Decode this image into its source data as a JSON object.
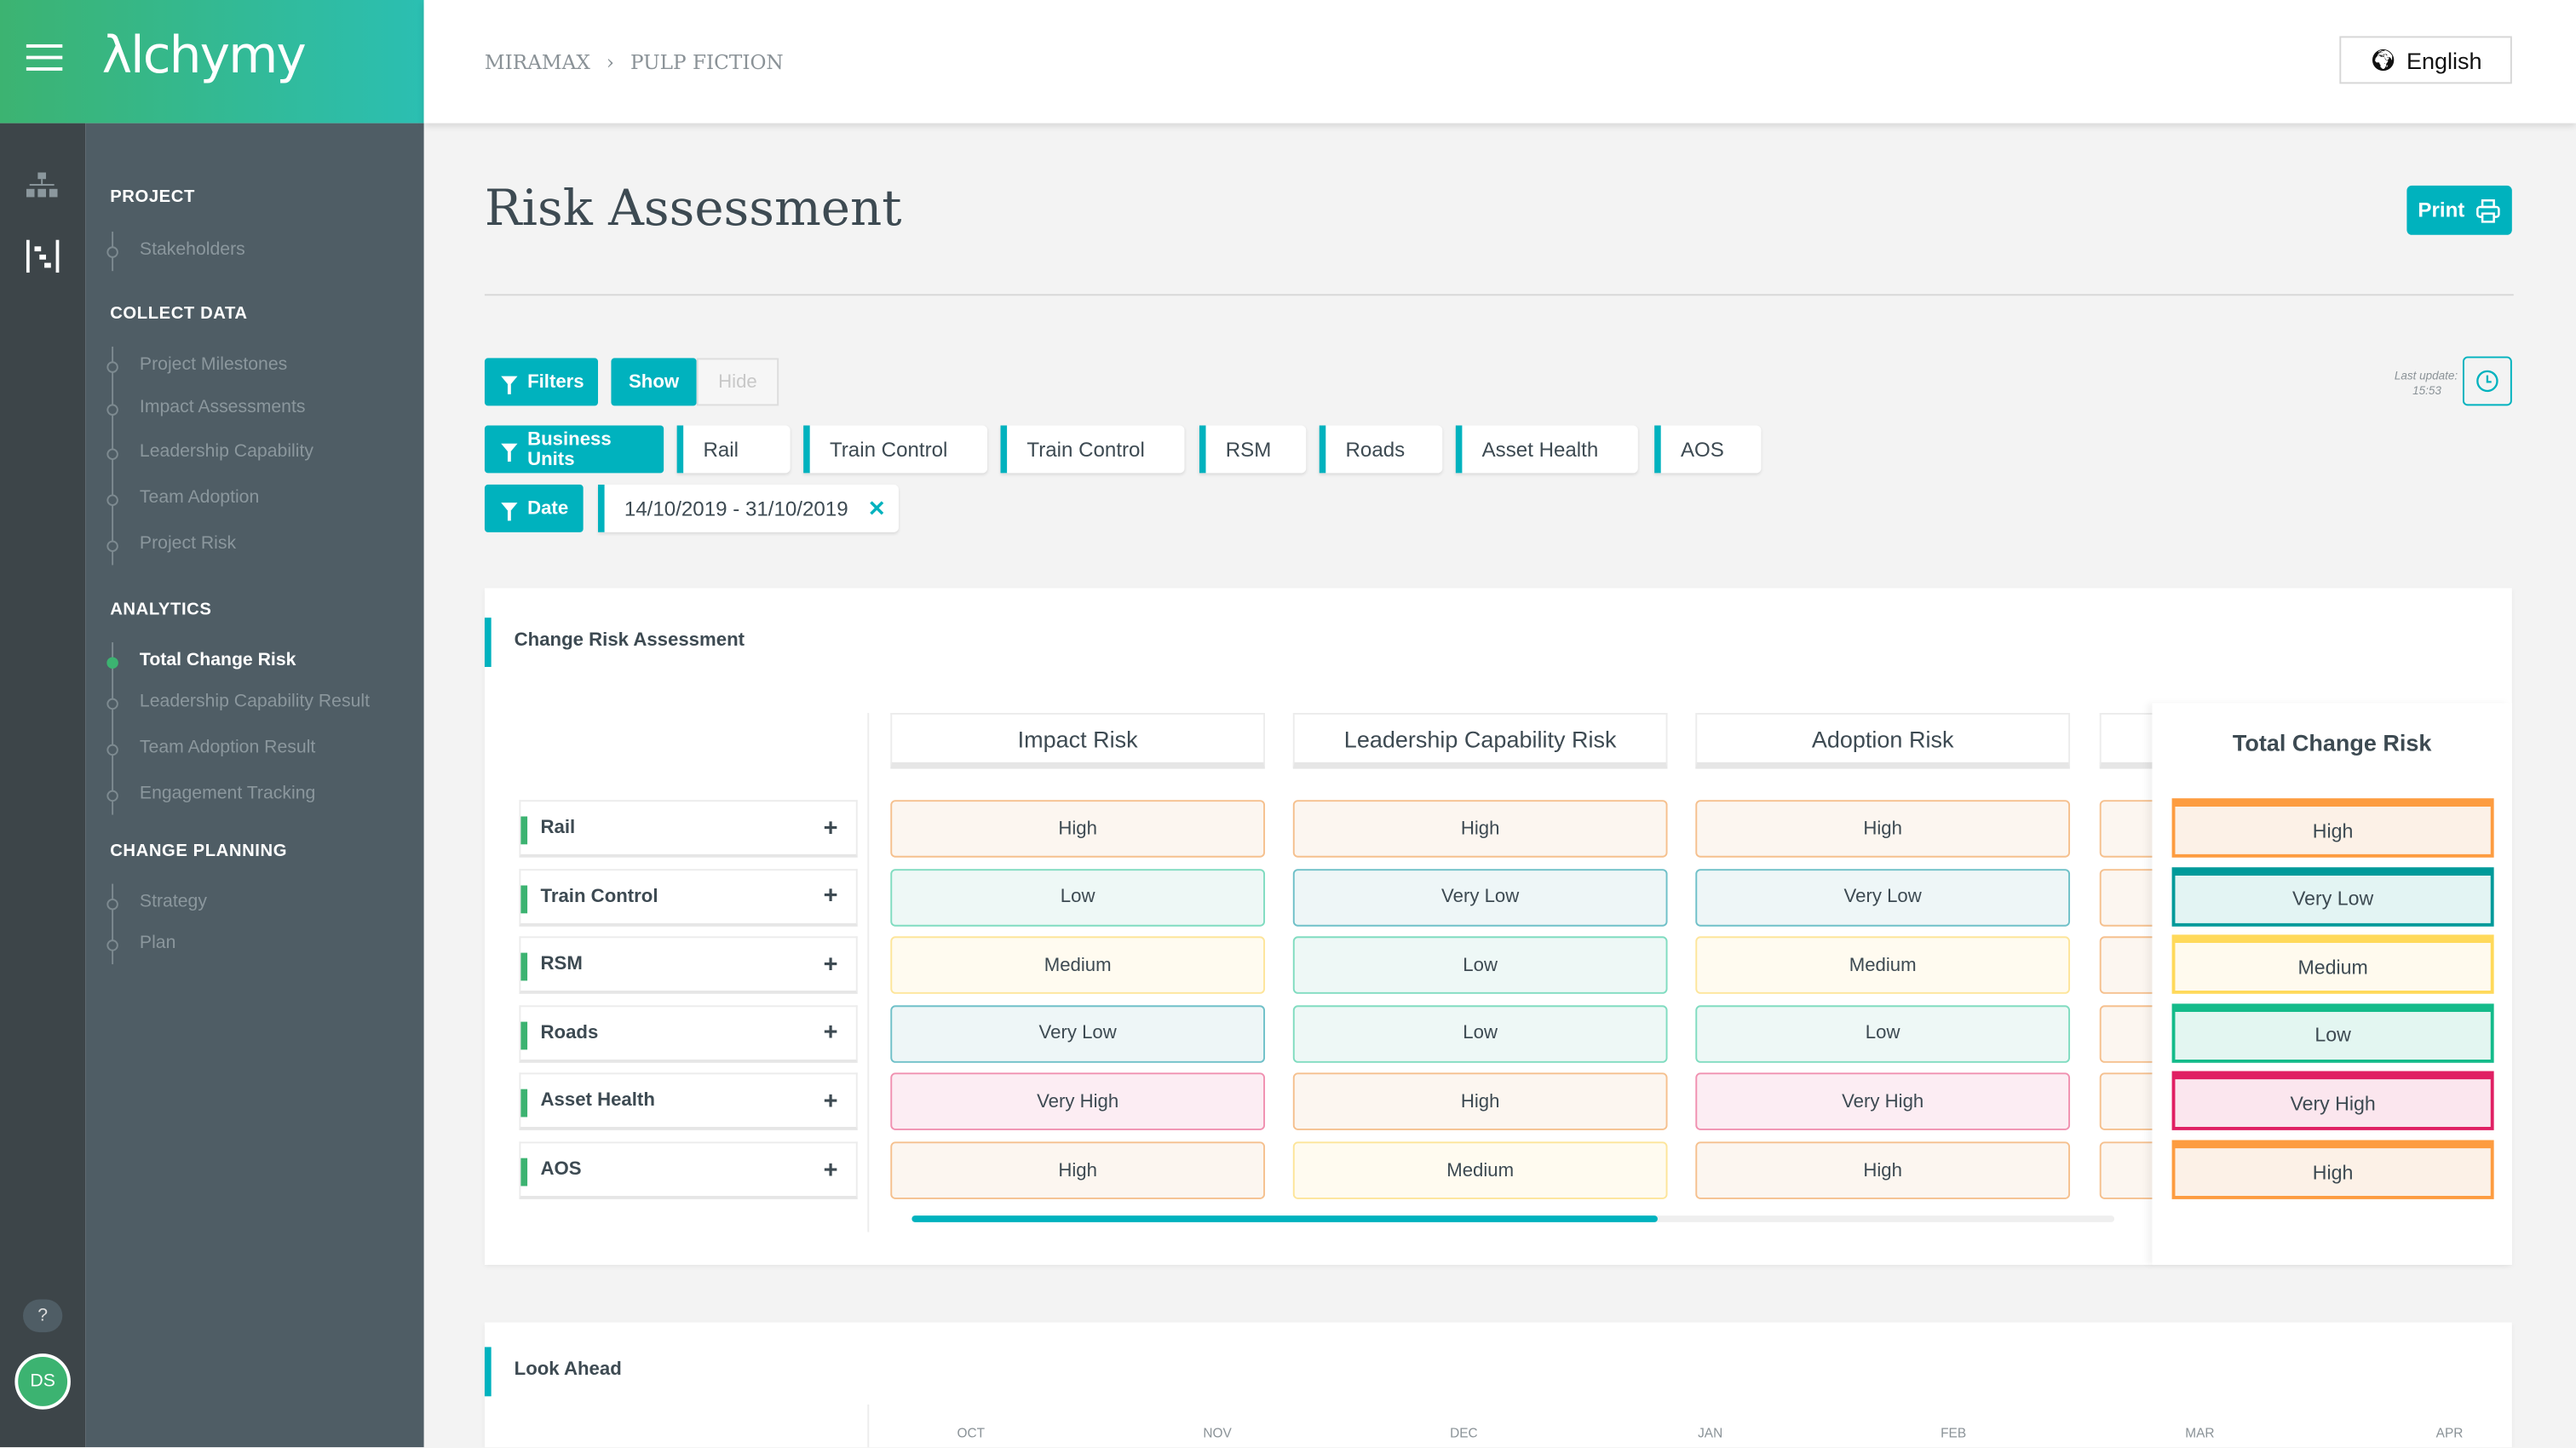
{
  "app": {
    "logo": "λlchymy",
    "language": "English",
    "avatar": "DS",
    "help": "?"
  },
  "breadcrumb": [
    "MIRAMAX",
    "PULP FICTION"
  ],
  "sidebar": {
    "sections": [
      {
        "title": "PROJECT",
        "items": [
          {
            "label": "Stakeholders"
          }
        ]
      },
      {
        "title": "COLLECT DATA",
        "items": [
          {
            "label": "Project Milestones"
          },
          {
            "label": "Impact Assessments"
          },
          {
            "label": "Leadership Capability"
          },
          {
            "label": "Team Adoption"
          },
          {
            "label": "Project Risk"
          }
        ]
      },
      {
        "title": "ANALYTICS",
        "items": [
          {
            "label": "Total Change Risk",
            "active": true
          },
          {
            "label": "Leadership Capability Result"
          },
          {
            "label": "Team Adoption Result"
          },
          {
            "label": "Engagement Tracking"
          }
        ]
      },
      {
        "title": "CHANGE PLANNING",
        "items": [
          {
            "label": "Strategy"
          },
          {
            "label": "Plan"
          }
        ]
      }
    ]
  },
  "page": {
    "title": "Risk Assessment",
    "print": "Print"
  },
  "filters": {
    "filters_label": "Filters",
    "show": "Show",
    "hide": "Hide",
    "last_update_label": "Last update:",
    "last_update_time": "15:53",
    "business_units_label": "Business Units",
    "business_units": [
      "Rail",
      "Train Control",
      "Train Control",
      "RSM",
      "Roads",
      "Asset Health",
      "AOS"
    ],
    "date_label": "Date",
    "date_range": "14/10/2019 - 31/10/2019"
  },
  "risk_card": {
    "title": "Change Risk Assessment",
    "columns": [
      "Impact Risk",
      "Leadership Capability Risk",
      "Adoption Risk",
      ""
    ],
    "total_label": "Total Change Risk",
    "rows": [
      {
        "name": "Rail",
        "values": [
          "High",
          "High",
          "High"
        ],
        "total": "High"
      },
      {
        "name": "Train Control",
        "values": [
          "Low",
          "Very Low",
          "Very Low"
        ],
        "total": "Very Low"
      },
      {
        "name": "RSM",
        "values": [
          "Medium",
          "Low",
          "Medium"
        ],
        "total": "Medium"
      },
      {
        "name": "Roads",
        "values": [
          "Very Low",
          "Low",
          "Low"
        ],
        "total": "Low"
      },
      {
        "name": "Asset Health",
        "values": [
          "Very High",
          "High",
          "Very High"
        ],
        "total": "Very High"
      },
      {
        "name": "AOS",
        "values": [
          "High",
          "Medium",
          "High"
        ],
        "total": "High"
      }
    ],
    "scroll_position": 0.62
  },
  "colors": {
    "accent": "#00b2be",
    "brand_green": "#3cb371",
    "levels": {
      "Very Low": {
        "border": "#6fc0c8",
        "bg": "#eef6f7",
        "strong": "#009a9a",
        "strong_bg": "#e3f4f3"
      },
      "Low": {
        "border": "#80dcc0",
        "bg": "#eef8f6",
        "strong": "#14bb8a",
        "strong_bg": "#e3f6f1"
      },
      "Medium": {
        "border": "#fde59a",
        "bg": "#fffbf0",
        "strong": "#ffd95a",
        "strong_bg": "#fffaee"
      },
      "High": {
        "border": "#f5c08e",
        "bg": "#fcf6f0",
        "strong": "#fd9c40",
        "strong_bg": "#fcf1e7"
      },
      "Very High": {
        "border": "#f090b0",
        "bg": "#fcedf3",
        "strong": "#e01f63",
        "strong_bg": "#fbe6ee"
      }
    }
  },
  "look_ahead": {
    "title": "Look Ahead",
    "months": [
      "OCT",
      "NOV",
      "DEC",
      "JAN",
      "FEB",
      "MAR",
      "APR"
    ]
  }
}
